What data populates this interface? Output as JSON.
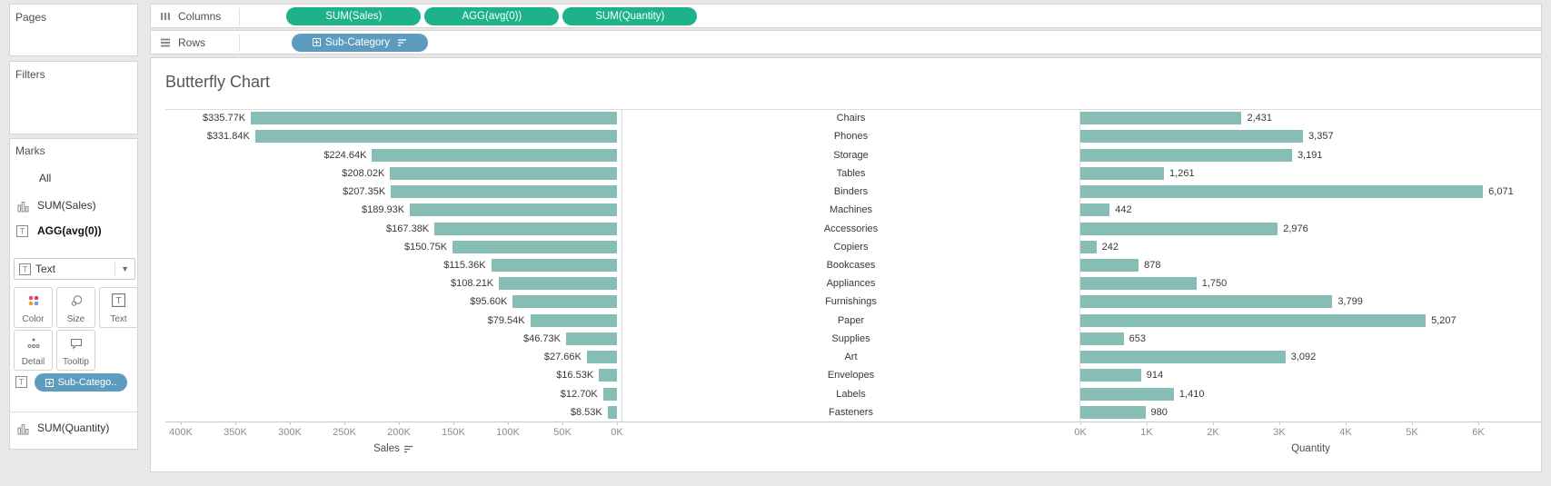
{
  "shelves": {
    "columns": {
      "label": "Columns",
      "pills": [
        "SUM(Sales)",
        "AGG(avg(0))",
        "SUM(Quantity)"
      ]
    },
    "rows": {
      "label": "Rows",
      "pills": [
        "Sub-Category"
      ]
    }
  },
  "sidebar": {
    "pages_label": "Pages",
    "filters_label": "Filters",
    "marks_label": "Marks",
    "marks_tabs": [
      "All",
      "SUM(Sales)",
      "AGG(avg(0))"
    ],
    "mark_type_dropdown": "Text",
    "buttons": [
      "Color",
      "Size",
      "Text",
      "Detail",
      "Tooltip"
    ],
    "encoding_pill": "Sub-Catego..",
    "bottom_item": "SUM(Quantity)"
  },
  "chart_data": {
    "type": "bar",
    "title": "Butterfly Chart",
    "orientation": "horizontal-butterfly",
    "bar_color": "#86bdb5",
    "categories": [
      "Chairs",
      "Phones",
      "Storage",
      "Tables",
      "Binders",
      "Machines",
      "Accessories",
      "Copiers",
      "Bookcases",
      "Appliances",
      "Furnishings",
      "Paper",
      "Supplies",
      "Art",
      "Envelopes",
      "Labels",
      "Fasteners"
    ],
    "series": [
      {
        "name": "Sales",
        "values": [
          335.77,
          331.84,
          224.64,
          208.02,
          207.35,
          189.93,
          167.38,
          150.75,
          115.36,
          108.21,
          95.6,
          79.54,
          46.73,
          27.66,
          16.53,
          12.7,
          8.53
        ],
        "labels": [
          "$335.77K",
          "$331.84K",
          "$224.64K",
          "$208.02K",
          "$207.35K",
          "$189.93K",
          "$167.38K",
          "$150.75K",
          "$115.36K",
          "$108.21K",
          "$95.60K",
          "$79.54K",
          "$46.73K",
          "$27.66K",
          "$16.53K",
          "$12.70K",
          "$8.53K"
        ],
        "axis": {
          "label": "Sales",
          "tick_labels": [
            "400K",
            "350K",
            "300K",
            "250K",
            "200K",
            "150K",
            "100K",
            "50K",
            "0K"
          ],
          "tick_values": [
            400,
            350,
            300,
            250,
            200,
            150,
            100,
            50,
            0
          ],
          "reversed": true,
          "range": [
            0,
            400
          ],
          "sorted": true
        }
      },
      {
        "name": "Quantity",
        "values": [
          2431,
          3357,
          3191,
          1261,
          6071,
          442,
          2976,
          242,
          878,
          1750,
          3799,
          5207,
          653,
          3092,
          914,
          1410,
          980
        ],
        "labels": [
          "2,431",
          "3,357",
          "3,191",
          "1,261",
          "6,071",
          "442",
          "2,976",
          "242",
          "878",
          "1,750",
          "3,799",
          "5,207",
          "653",
          "3,092",
          "914",
          "1,410",
          "980"
        ],
        "axis": {
          "label": "Quantity",
          "tick_labels": [
            "0K",
            "1K",
            "2K",
            "3K",
            "4K",
            "5K",
            "6K"
          ],
          "tick_values": [
            0,
            1000,
            2000,
            3000,
            4000,
            5000,
            6000
          ],
          "range": [
            0,
            6900
          ]
        }
      }
    ]
  }
}
